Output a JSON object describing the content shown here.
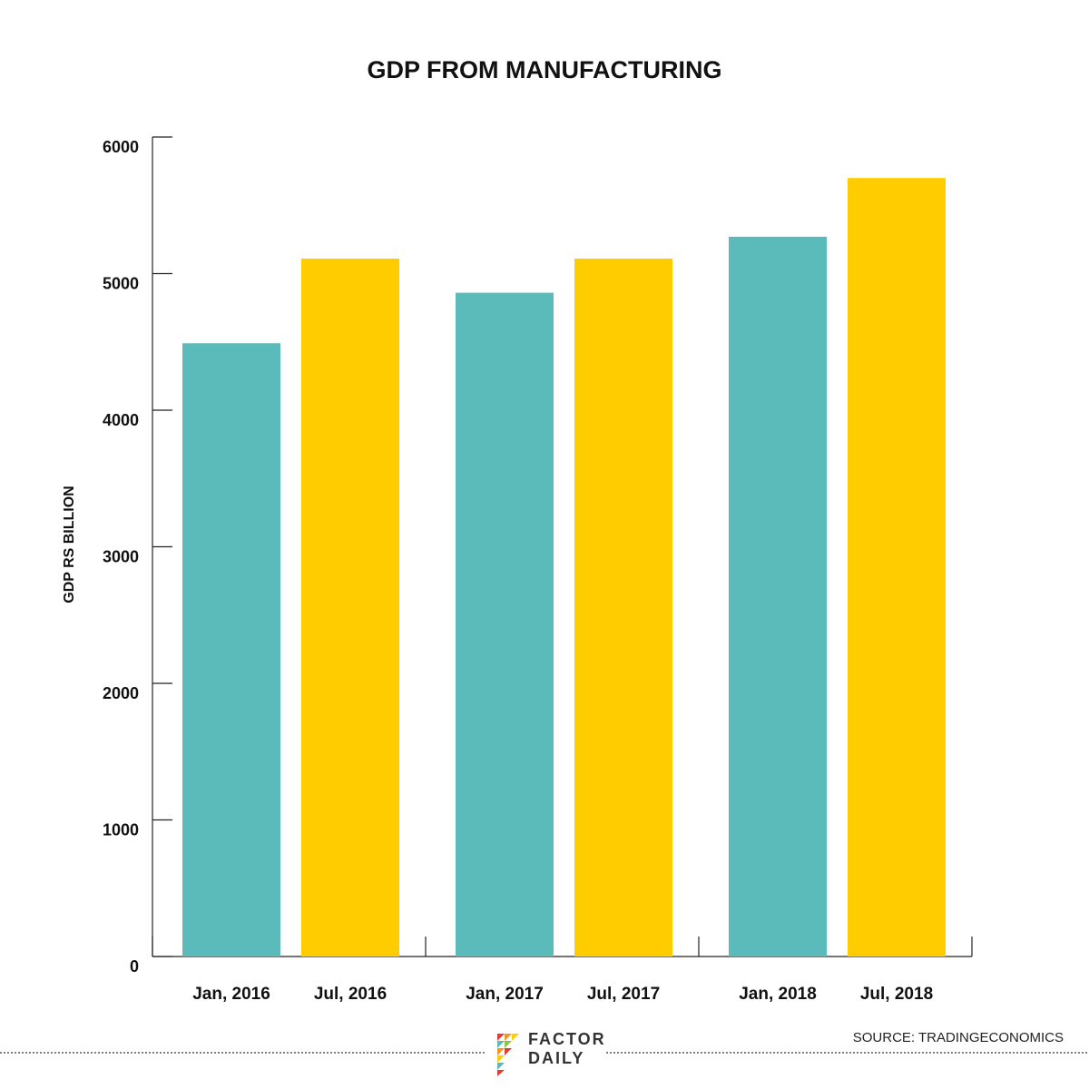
{
  "chart_data": {
    "type": "bar",
    "title": "GDP FROM MANUFACTURING",
    "xlabel": "",
    "ylabel": "GDP RS BILLION",
    "ylim": [
      0,
      6000
    ],
    "yticks": [
      "0",
      "1000",
      "2000",
      "3000",
      "4000",
      "5000",
      "6000"
    ],
    "grid": false,
    "categories": [
      "Jan, 2016",
      "Jul, 2016",
      "Jan, 2017",
      "Jul, 2017",
      "Jan, 2018",
      "Jul, 2018"
    ],
    "values": [
      4490,
      5110,
      4860,
      5110,
      5270,
      5700
    ],
    "bar_colors": [
      "#5bbbbb",
      "#ffcc00",
      "#5bbbbb",
      "#ffcc00",
      "#5bbbbb",
      "#ffcc00"
    ]
  },
  "footer": {
    "source": "SOURCE: TRADINGECONOMICS",
    "logo_line1": "FACTOR",
    "logo_line2": "DAILY"
  }
}
